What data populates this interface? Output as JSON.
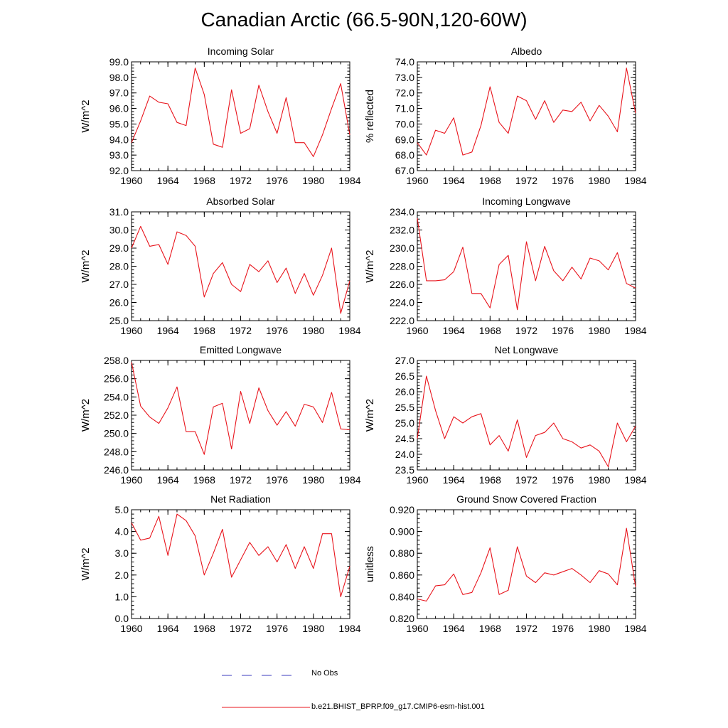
{
  "figure_title": "Canadian Arctic (66.5-90N,120-60W)",
  "colors": {
    "model": "#e8141c",
    "obs": "#3b3bbf",
    "axis": "#000000"
  },
  "legend": {
    "obs_label": "No Obs",
    "model_label": "b.e21.BHIST_BPRP.f09_g17.CMIP6-esm-hist.001"
  },
  "chart_data": [
    {
      "type": "line",
      "title": "Incoming Solar",
      "ylabel": "W/m^2",
      "xlim": [
        1960,
        1984
      ],
      "ylim": [
        92.0,
        99.0
      ],
      "xticks": [
        1960,
        1964,
        1968,
        1972,
        1976,
        1980,
        1984
      ],
      "xtick_labels": [
        "1960",
        "1964",
        "1968",
        "1972",
        "1976",
        "1980",
        "1984"
      ],
      "yticks": [
        92,
        93,
        94,
        95,
        96,
        97,
        98,
        99
      ],
      "ytick_labels": [
        "92.0",
        "93.0",
        "94.0",
        "95.0",
        "96.0",
        "97.0",
        "98.0",
        "99.0"
      ],
      "x": [
        1960,
        1961,
        1962,
        1963,
        1964,
        1965,
        1966,
        1967,
        1968,
        1969,
        1970,
        1971,
        1972,
        1973,
        1974,
        1975,
        1976,
        1977,
        1978,
        1979,
        1980,
        1981,
        1982,
        1983,
        1984
      ],
      "series": [
        {
          "name": "b.e21.BHIST_BPRP.f09_g17.CMIP6-esm-hist.001",
          "values": [
            93.8,
            95.2,
            96.8,
            96.4,
            96.3,
            95.1,
            94.9,
            98.6,
            96.9,
            93.7,
            93.5,
            97.2,
            94.4,
            94.7,
            97.5,
            95.8,
            94.4,
            96.7,
            93.8,
            93.8,
            92.9,
            94.3,
            96.0,
            97.6,
            94.3
          ]
        }
      ]
    },
    {
      "type": "line",
      "title": "Albedo",
      "ylabel": "% reflected",
      "xlim": [
        1960,
        1984
      ],
      "ylim": [
        67.0,
        74.0
      ],
      "xticks": [
        1960,
        1964,
        1968,
        1972,
        1976,
        1980,
        1984
      ],
      "xtick_labels": [
        "1960",
        "1964",
        "1968",
        "1972",
        "1976",
        "1980",
        "1984"
      ],
      "yticks": [
        67,
        68,
        69,
        70,
        71,
        72,
        73,
        74
      ],
      "ytick_labels": [
        "67.0",
        "68.0",
        "69.0",
        "70.0",
        "71.0",
        "72.0",
        "73.0",
        "74.0"
      ],
      "x": [
        1960,
        1961,
        1962,
        1963,
        1964,
        1965,
        1966,
        1967,
        1968,
        1969,
        1970,
        1971,
        1972,
        1973,
        1974,
        1975,
        1976,
        1977,
        1978,
        1979,
        1980,
        1981,
        1982,
        1983,
        1984
      ],
      "series": [
        {
          "name": "b.e21.BHIST_BPRP.f09_g17.CMIP6-esm-hist.001",
          "values": [
            68.8,
            68.0,
            69.6,
            69.4,
            70.4,
            68.0,
            68.2,
            69.9,
            72.4,
            70.1,
            69.4,
            71.8,
            71.5,
            70.3,
            71.5,
            70.1,
            70.9,
            70.8,
            71.4,
            70.2,
            71.2,
            70.5,
            69.5,
            73.6,
            70.7
          ]
        }
      ]
    },
    {
      "type": "line",
      "title": "Absorbed Solar",
      "ylabel": "W/m^2",
      "xlim": [
        1960,
        1984
      ],
      "ylim": [
        25.0,
        31.0
      ],
      "xticks": [
        1960,
        1964,
        1968,
        1972,
        1976,
        1980,
        1984
      ],
      "xtick_labels": [
        "1960",
        "1964",
        "1968",
        "1972",
        "1976",
        "1980",
        "1984"
      ],
      "yticks": [
        25,
        26,
        27,
        28,
        29,
        30,
        31
      ],
      "ytick_labels": [
        "25.0",
        "26.0",
        "27.0",
        "28.0",
        "29.0",
        "30.0",
        "31.0"
      ],
      "x": [
        1960,
        1961,
        1962,
        1963,
        1964,
        1965,
        1966,
        1967,
        1968,
        1969,
        1970,
        1971,
        1972,
        1973,
        1974,
        1975,
        1976,
        1977,
        1978,
        1979,
        1980,
        1981,
        1982,
        1983,
        1984
      ],
      "series": [
        {
          "name": "b.e21.BHIST_BPRP.f09_g17.CMIP6-esm-hist.001",
          "values": [
            29.0,
            30.2,
            29.1,
            29.2,
            28.1,
            29.9,
            29.7,
            29.1,
            26.3,
            27.6,
            28.2,
            27.0,
            26.6,
            28.1,
            27.7,
            28.3,
            27.1,
            27.9,
            26.5,
            27.6,
            26.4,
            27.5,
            29.0,
            25.4,
            27.2
          ]
        }
      ]
    },
    {
      "type": "line",
      "title": "Incoming Longwave",
      "ylabel": "W/m^2",
      "xlim": [
        1960,
        1984
      ],
      "ylim": [
        222.0,
        234.0
      ],
      "xticks": [
        1960,
        1964,
        1968,
        1972,
        1976,
        1980,
        1984
      ],
      "xtick_labels": [
        "1960",
        "1964",
        "1968",
        "1972",
        "1976",
        "1980",
        "1984"
      ],
      "yticks": [
        222,
        224,
        226,
        228,
        230,
        232,
        234
      ],
      "ytick_labels": [
        "222.0",
        "224.0",
        "226.0",
        "228.0",
        "230.0",
        "232.0",
        "234.0"
      ],
      "x": [
        1960,
        1961,
        1962,
        1963,
        1964,
        1965,
        1966,
        1967,
        1968,
        1969,
        1970,
        1971,
        1972,
        1973,
        1974,
        1975,
        1976,
        1977,
        1978,
        1979,
        1980,
        1981,
        1982,
        1983,
        1984
      ],
      "series": [
        {
          "name": "b.e21.BHIST_BPRP.f09_g17.CMIP6-esm-hist.001",
          "values": [
            233.3,
            226.4,
            226.4,
            226.5,
            227.4,
            230.1,
            225.0,
            225.0,
            223.4,
            228.2,
            229.2,
            223.2,
            230.7,
            226.4,
            230.2,
            227.5,
            226.4,
            227.9,
            226.6,
            228.9,
            228.6,
            227.6,
            229.5,
            226.1,
            225.6
          ]
        }
      ]
    },
    {
      "type": "line",
      "title": "Emitted Longwave",
      "ylabel": "W/m^2",
      "xlim": [
        1960,
        1984
      ],
      "ylim": [
        246.0,
        258.0
      ],
      "xticks": [
        1960,
        1964,
        1968,
        1972,
        1976,
        1980,
        1984
      ],
      "xtick_labels": [
        "1960",
        "1964",
        "1968",
        "1972",
        "1976",
        "1980",
        "1984"
      ],
      "yticks": [
        246,
        248,
        250,
        252,
        254,
        256,
        258
      ],
      "ytick_labels": [
        "246.0",
        "248.0",
        "250.0",
        "252.0",
        "254.0",
        "256.0",
        "258.0"
      ],
      "x": [
        1960,
        1961,
        1962,
        1963,
        1964,
        1965,
        1966,
        1967,
        1968,
        1969,
        1970,
        1971,
        1972,
        1973,
        1974,
        1975,
        1976,
        1977,
        1978,
        1979,
        1980,
        1981,
        1982,
        1983,
        1984
      ],
      "series": [
        {
          "name": "b.e21.BHIST_BPRP.f09_g17.CMIP6-esm-hist.001",
          "values": [
            257.8,
            253.0,
            251.8,
            251.1,
            252.8,
            255.1,
            250.2,
            250.2,
            247.7,
            252.9,
            253.3,
            248.3,
            254.6,
            251.1,
            255.0,
            252.5,
            250.9,
            252.4,
            250.8,
            253.2,
            252.9,
            251.2,
            254.5,
            250.5,
            250.4
          ]
        }
      ]
    },
    {
      "type": "line",
      "title": "Net Longwave",
      "ylabel": "W/m^2",
      "xlim": [
        1960,
        1984
      ],
      "ylim": [
        23.5,
        27.0
      ],
      "xticks": [
        1960,
        1964,
        1968,
        1972,
        1976,
        1980,
        1984
      ],
      "xtick_labels": [
        "1960",
        "1964",
        "1968",
        "1972",
        "1976",
        "1980",
        "1984"
      ],
      "yticks": [
        23.5,
        24.0,
        24.5,
        25.0,
        25.5,
        26.0,
        26.5,
        27.0
      ],
      "ytick_labels": [
        "23.5",
        "24.0",
        "24.5",
        "25.0",
        "25.5",
        "26.0",
        "26.5",
        "27.0"
      ],
      "x": [
        1960,
        1961,
        1962,
        1963,
        1964,
        1965,
        1966,
        1967,
        1968,
        1969,
        1970,
        1971,
        1972,
        1973,
        1974,
        1975,
        1976,
        1977,
        1978,
        1979,
        1980,
        1981,
        1982,
        1983,
        1984
      ],
      "series": [
        {
          "name": "b.e21.BHIST_BPRP.f09_g17.CMIP6-esm-hist.001",
          "values": [
            24.5,
            26.5,
            25.4,
            24.5,
            25.2,
            25.0,
            25.2,
            25.3,
            24.3,
            24.6,
            24.1,
            25.1,
            23.9,
            24.6,
            24.7,
            25.0,
            24.5,
            24.4,
            24.2,
            24.3,
            24.1,
            23.6,
            25.0,
            24.4,
            24.9
          ]
        }
      ]
    },
    {
      "type": "line",
      "title": "Net Radiation",
      "ylabel": "W/m^2",
      "xlim": [
        1960,
        1984
      ],
      "ylim": [
        0.0,
        5.0
      ],
      "xticks": [
        1960,
        1964,
        1968,
        1972,
        1976,
        1980,
        1984
      ],
      "xtick_labels": [
        "1960",
        "1964",
        "1968",
        "1972",
        "1976",
        "1980",
        "1984"
      ],
      "yticks": [
        0,
        1,
        2,
        3,
        4,
        5
      ],
      "ytick_labels": [
        "0.0",
        "1.0",
        "2.0",
        "3.0",
        "4.0",
        "5.0"
      ],
      "x": [
        1960,
        1961,
        1962,
        1963,
        1964,
        1965,
        1966,
        1967,
        1968,
        1969,
        1970,
        1971,
        1972,
        1973,
        1974,
        1975,
        1976,
        1977,
        1978,
        1979,
        1980,
        1981,
        1982,
        1983,
        1984
      ],
      "series": [
        {
          "name": "b.e21.BHIST_BPRP.f09_g17.CMIP6-esm-hist.001",
          "values": [
            4.4,
            3.6,
            3.7,
            4.7,
            2.9,
            4.8,
            4.5,
            3.8,
            2.0,
            3.0,
            4.1,
            1.9,
            2.7,
            3.5,
            2.9,
            3.3,
            2.6,
            3.4,
            2.3,
            3.3,
            2.3,
            3.9,
            3.9,
            1.0,
            2.4
          ]
        }
      ]
    },
    {
      "type": "line",
      "title": "Ground Snow Covered Fraction",
      "ylabel": "unitless",
      "xlim": [
        1960,
        1984
      ],
      "ylim": [
        0.82,
        0.92
      ],
      "xticks": [
        1960,
        1964,
        1968,
        1972,
        1976,
        1980,
        1984
      ],
      "xtick_labels": [
        "1960",
        "1964",
        "1968",
        "1972",
        "1976",
        "1980",
        "1984"
      ],
      "yticks": [
        0.82,
        0.84,
        0.86,
        0.88,
        0.9,
        0.92
      ],
      "ytick_labels": [
        "0.820",
        "0.840",
        "0.860",
        "0.880",
        "0.900",
        "0.920"
      ],
      "x": [
        1960,
        1961,
        1962,
        1963,
        1964,
        1965,
        1966,
        1967,
        1968,
        1969,
        1970,
        1971,
        1972,
        1973,
        1974,
        1975,
        1976,
        1977,
        1978,
        1979,
        1980,
        1981,
        1982,
        1983,
        1984
      ],
      "series": [
        {
          "name": "b.e21.BHIST_BPRP.f09_g17.CMIP6-esm-hist.001",
          "values": [
            0.838,
            0.836,
            0.85,
            0.851,
            0.861,
            0.842,
            0.844,
            0.862,
            0.885,
            0.842,
            0.846,
            0.886,
            0.859,
            0.853,
            0.862,
            0.86,
            0.863,
            0.866,
            0.86,
            0.853,
            0.864,
            0.861,
            0.851,
            0.903,
            0.849
          ]
        }
      ]
    }
  ]
}
